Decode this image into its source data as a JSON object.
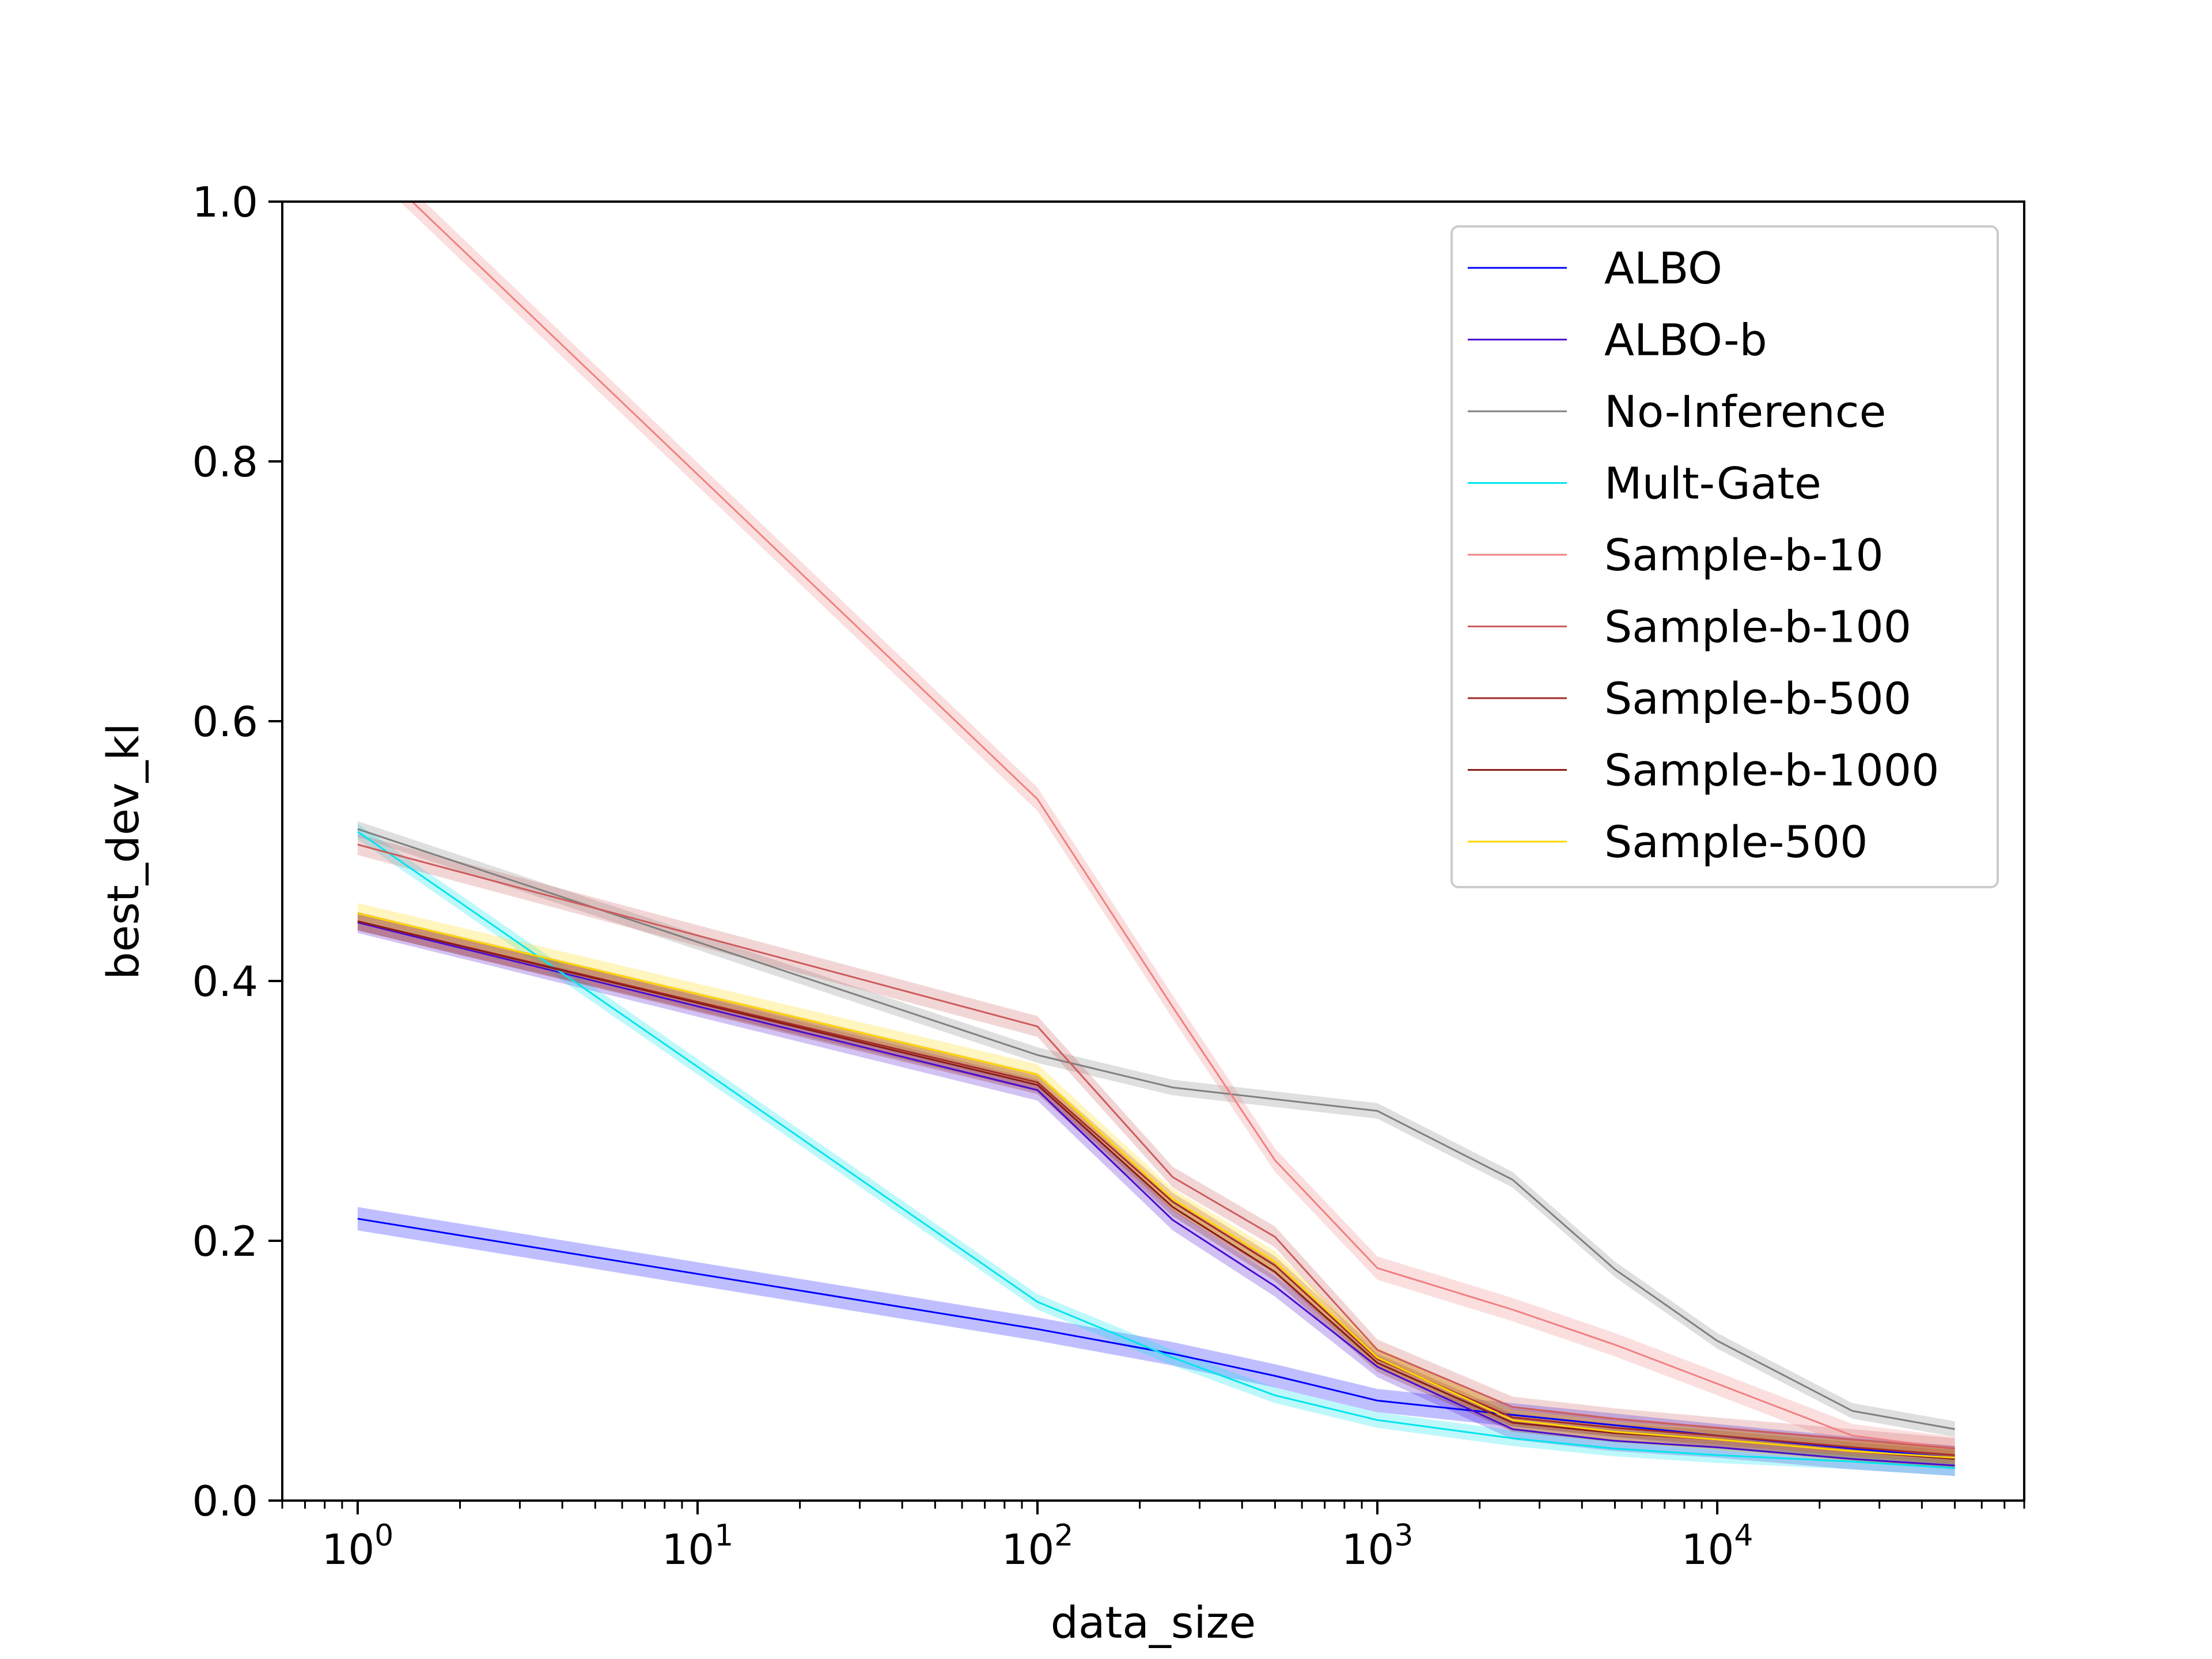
{
  "chart_data": {
    "type": "line",
    "xlabel": "data_size",
    "ylabel": "best_dev_kl",
    "x_scale": "log",
    "xlim": [
      0.6,
      80000
    ],
    "ylim": [
      0,
      1.0
    ],
    "x_ticks": [
      1,
      10,
      100,
      1000,
      10000
    ],
    "x_tick_labels": [
      {
        "base": "10",
        "exp": "0"
      },
      {
        "base": "10",
        "exp": "1"
      },
      {
        "base": "10",
        "exp": "2"
      },
      {
        "base": "10",
        "exp": "3"
      },
      {
        "base": "10",
        "exp": "4"
      }
    ],
    "y_ticks": [
      0.0,
      0.2,
      0.4,
      0.6,
      0.8,
      1.0
    ],
    "y_tick_labels": [
      "0.0",
      "0.2",
      "0.4",
      "0.6",
      "0.8",
      "1.0"
    ],
    "grid": false,
    "legend_position": "top-right",
    "x": [
      1,
      100,
      250,
      500,
      1000,
      2500,
      5000,
      10000,
      25000,
      50000
    ],
    "series": [
      {
        "name": "ALBO",
        "color": "#0000ff",
        "values": [
          0.217,
          0.132,
          0.113,
          0.096,
          0.077,
          0.066,
          0.058,
          0.05,
          0.04,
          0.033
        ],
        "band": 0.009
      },
      {
        "name": "ALBO-b",
        "color": "#4b0bd1",
        "values": [
          0.445,
          0.316,
          0.216,
          0.165,
          0.103,
          0.055,
          0.046,
          0.041,
          0.032,
          0.027
        ],
        "band": 0.008
      },
      {
        "name": "No-Inference",
        "color": "#808080",
        "values": [
          0.517,
          0.343,
          0.318,
          0.309,
          0.3,
          0.247,
          0.178,
          0.123,
          0.069,
          0.055
        ],
        "band": 0.006
      },
      {
        "name": "Mult-Gate",
        "color": "#00e5ee",
        "values": [
          0.515,
          0.153,
          0.11,
          0.081,
          0.062,
          0.048,
          0.04,
          0.035,
          0.03,
          0.025
        ],
        "band": 0.006
      },
      {
        "name": "Sample-b-10",
        "color": "#f08080",
        "values": [
          1.04,
          0.54,
          0.38,
          0.262,
          0.179,
          0.147,
          0.12,
          0.09,
          0.05,
          0.04
        ],
        "band": 0.009
      },
      {
        "name": "Sample-b-100",
        "color": "#cd5c5c",
        "values": [
          0.505,
          0.365,
          0.249,
          0.203,
          0.116,
          0.072,
          0.063,
          0.056,
          0.047,
          0.04
        ],
        "band": 0.008
      },
      {
        "name": "Sample-b-500",
        "color": "#a52a2a",
        "values": [
          0.446,
          0.322,
          0.23,
          0.181,
          0.109,
          0.064,
          0.056,
          0.05,
          0.041,
          0.035
        ],
        "band": 0.007
      },
      {
        "name": "Sample-b-1000",
        "color": "#8b1a1a",
        "values": [
          0.446,
          0.32,
          0.226,
          0.176,
          0.106,
          0.06,
          0.052,
          0.047,
          0.038,
          0.032
        ],
        "band": 0.007
      },
      {
        "name": "Sample-500",
        "color": "#ffd700",
        "values": [
          0.452,
          0.328,
          0.232,
          0.184,
          0.11,
          0.062,
          0.053,
          0.047,
          0.038,
          0.033
        ],
        "band": 0.008
      }
    ]
  }
}
